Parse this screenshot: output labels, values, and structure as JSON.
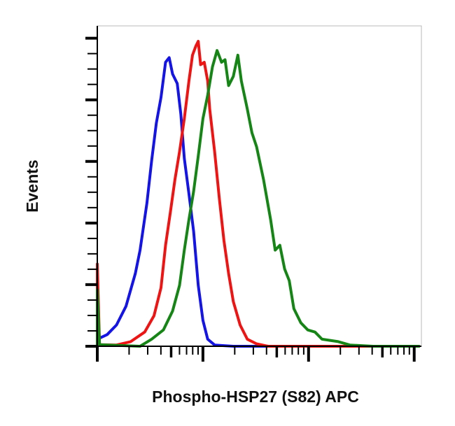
{
  "chart_data": {
    "type": "line",
    "title": "",
    "xlabel": "Phospho-HSP27 (S82) APC",
    "ylabel": "Events",
    "x_scale": "log",
    "xlim": [
      1,
      1170
    ],
    "ylim": [
      0,
      104
    ],
    "y_unit": "percent of max",
    "x_major_ticks": [
      1,
      10,
      100,
      1000
    ],
    "y_major_ticks": [
      0,
      20,
      40,
      60,
      80,
      100
    ],
    "y_minor_step": 5,
    "tick_labels_shown": false,
    "grid": false,
    "legend": "none",
    "series": [
      {
        "color": "#1414e6",
        "x": [
          1.0,
          1.24,
          1.52,
          1.87,
          2.29,
          2.54,
          2.95,
          3.27,
          3.62,
          4.01,
          4.43,
          4.79,
          5.16,
          5.71,
          6.17,
          6.66,
          7.37,
          8.16,
          9.03,
          10.0,
          11.1,
          12.9,
          19.4,
          1130
        ],
        "y": [
          2.3,
          3.8,
          6.9,
          13.0,
          23.6,
          31.2,
          46.5,
          60.2,
          72.4,
          80.8,
          92.2,
          93.7,
          88.4,
          85.3,
          75.4,
          61.0,
          49.5,
          37.3,
          19.8,
          8.4,
          2.3,
          0.4,
          0,
          0
        ]
      },
      {
        "color": "#ee1414",
        "x": [
          1.0,
          1.0,
          1.05,
          1.52,
          2.07,
          2.81,
          3.44,
          4.01,
          4.43,
          4.91,
          5.43,
          6.01,
          6.66,
          7.37,
          7.96,
          8.59,
          9.03,
          9.51,
          10.3,
          11.1,
          11.6,
          12.9,
          14.3,
          15.8,
          17.5,
          19.4,
          22.5,
          26.3,
          32.2,
          41.5,
          1130
        ],
        "y": [
          0,
          26.7,
          0.5,
          0.4,
          1.5,
          4.6,
          9.9,
          19.0,
          32.8,
          43.4,
          54.1,
          63.2,
          73.9,
          86.1,
          94.5,
          97.5,
          99.0,
          91.4,
          92.2,
          86.1,
          77.0,
          63.2,
          48.0,
          34.3,
          23.6,
          14.5,
          6.9,
          2.3,
          0.8,
          0,
          0
        ]
      },
      {
        "color": "#158515",
        "x": [
          1.0,
          1.0,
          1.05,
          2.54,
          3.27,
          4.22,
          5.16,
          6.01,
          6.66,
          7.37,
          8.16,
          9.03,
          10.0,
          11.1,
          12.3,
          13.6,
          15.0,
          16.2,
          17.5,
          19.4,
          21.4,
          23.1,
          26.3,
          29.1,
          32.2,
          37.5,
          43.7,
          48.3,
          53.5,
          59.3,
          65.6,
          72.6,
          84.6,
          98.4,
          115,
          134,
          191,
          246,
          408,
          1130
        ],
        "y": [
          0,
          18.3,
          0.5,
          0,
          2.3,
          5.3,
          11.4,
          19.8,
          31.2,
          41.1,
          50.3,
          61.7,
          73.9,
          81.5,
          90.7,
          96.0,
          92.2,
          93.0,
          84.6,
          87.6,
          94.5,
          86.1,
          77.0,
          69.3,
          64.8,
          54.1,
          41.1,
          31.2,
          32.8,
          25.1,
          21.3,
          12.2,
          7.6,
          5.3,
          4.6,
          2.3,
          1.5,
          0.4,
          0,
          0
        ]
      }
    ]
  }
}
